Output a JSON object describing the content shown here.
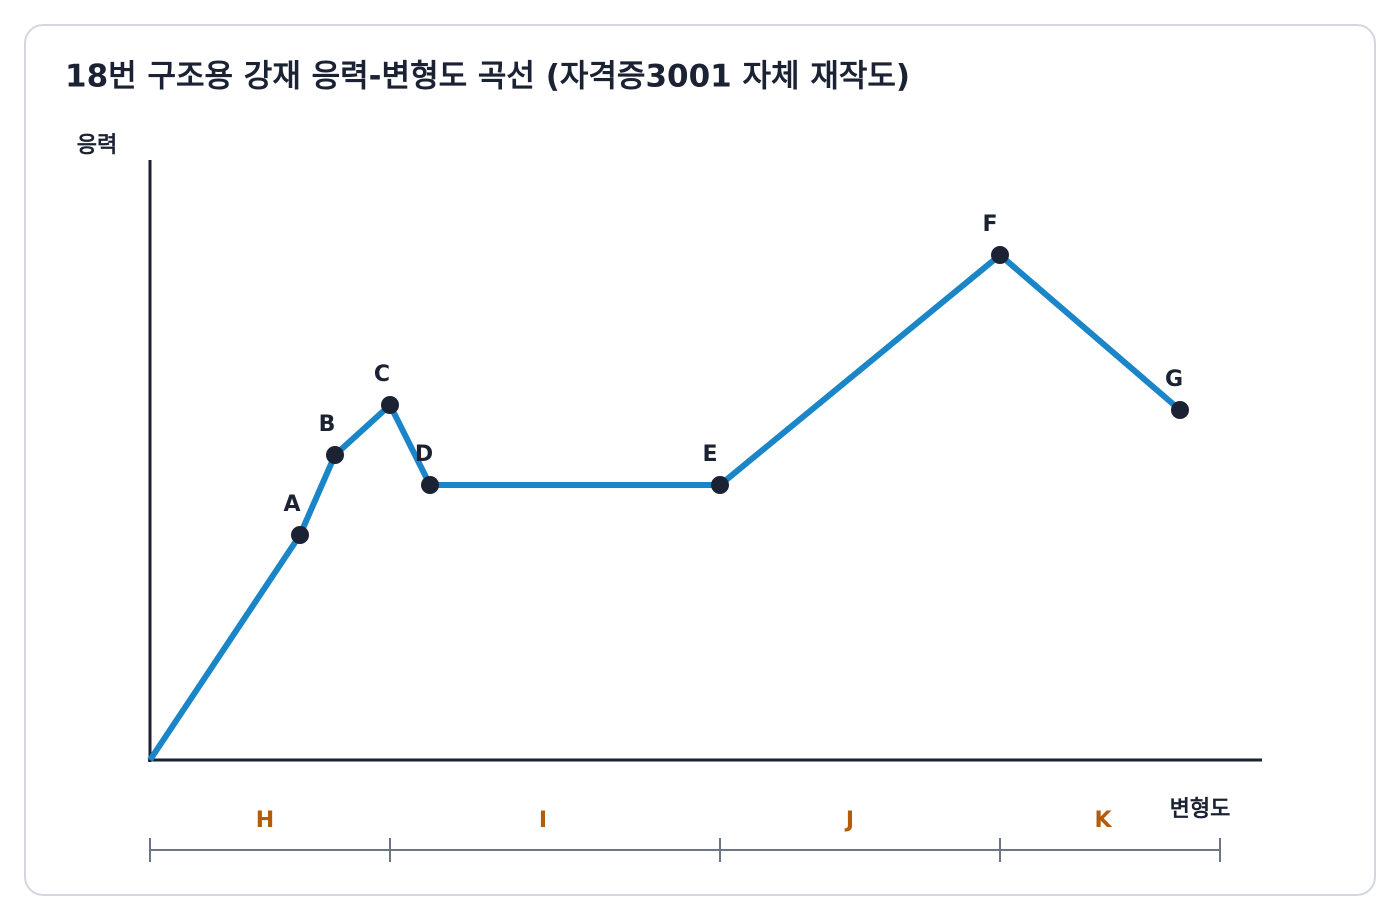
{
  "title": "18번 구조용 강재 응력-변형도 곡선 (자격증3001 자체 재작도)",
  "axes": {
    "y_label": "응력",
    "x_label": "변형도"
  },
  "points": [
    "A",
    "B",
    "C",
    "D",
    "E",
    "F",
    "G"
  ],
  "regions": [
    "H",
    "I",
    "J",
    "K"
  ]
}
